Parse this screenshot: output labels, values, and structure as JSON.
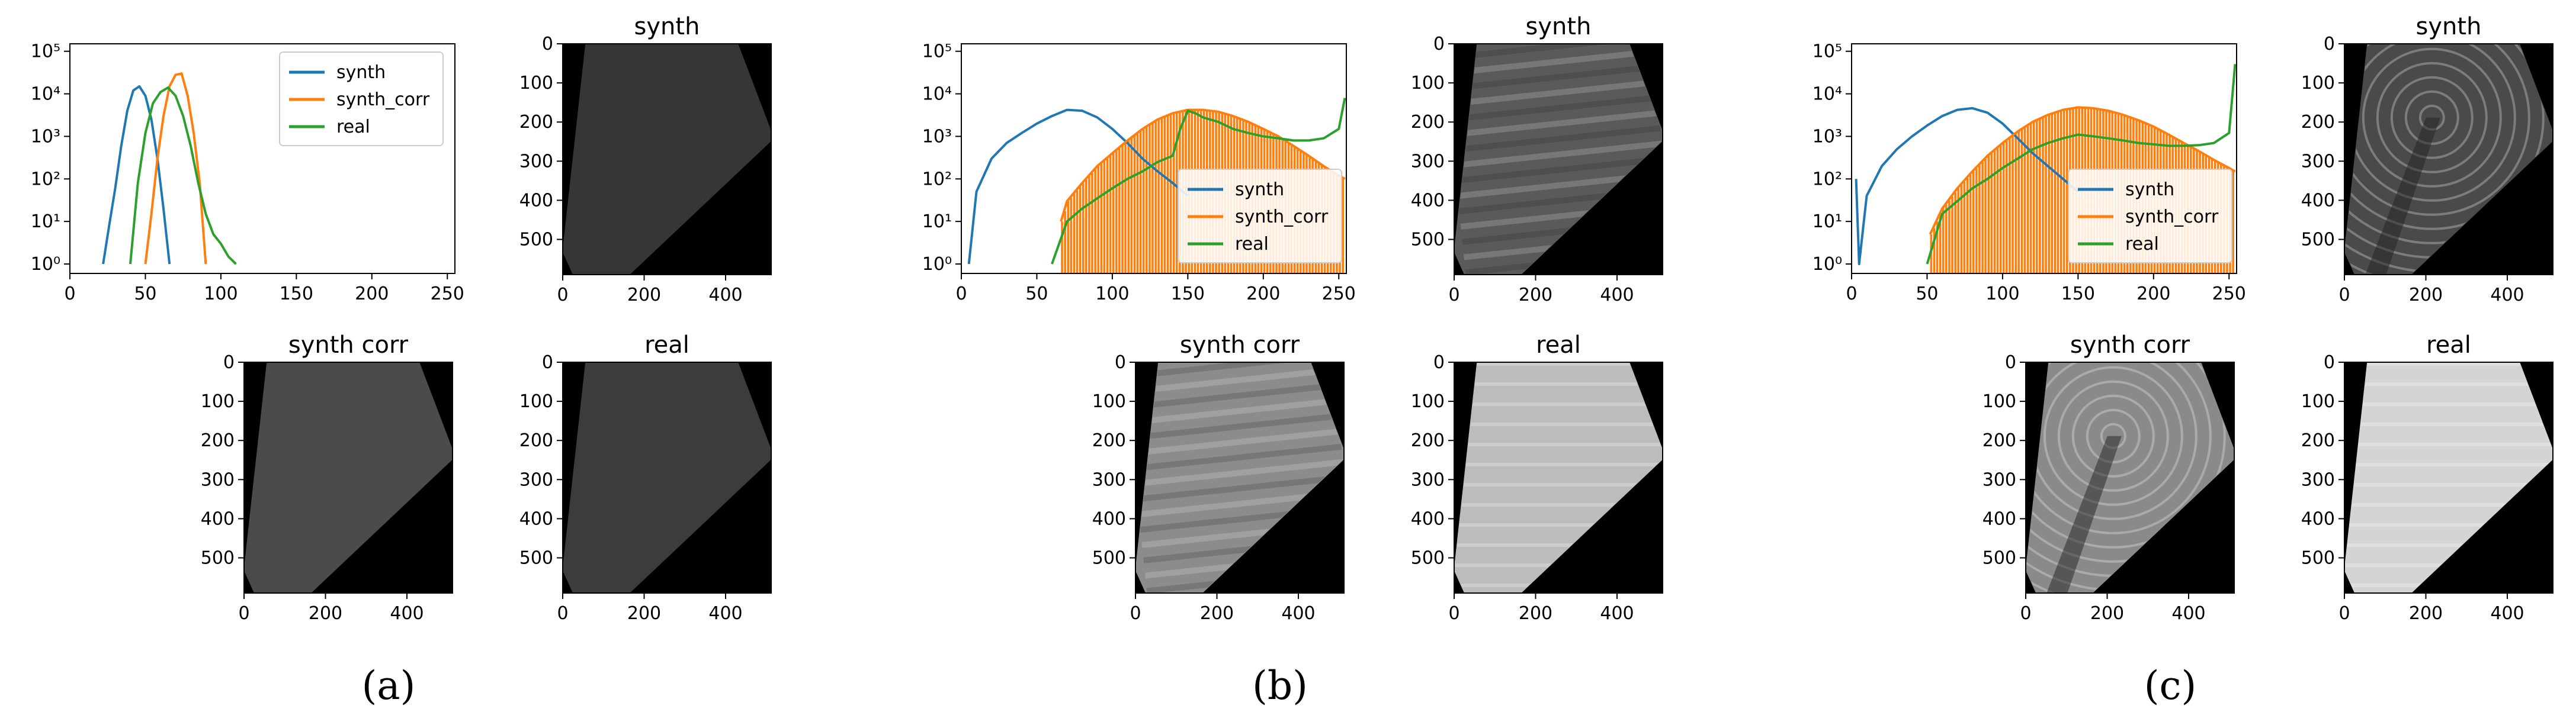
{
  "panels": [
    {
      "label": "(a)",
      "hist": {
        "legend": [
          "synth",
          "synth_corr",
          "real"
        ],
        "xticks": [
          "0",
          "50",
          "100",
          "150",
          "200",
          "250"
        ],
        "yticks": [
          "10⁰",
          "10¹",
          "10²",
          "10³",
          "10⁴",
          "10⁵"
        ]
      },
      "images": [
        {
          "title": "synth",
          "kind": "flat",
          "shade": "#363636"
        },
        {
          "title": "synth corr",
          "kind": "flat",
          "shade": "#4b4b4b"
        },
        {
          "title": "real",
          "kind": "flat",
          "shade": "#3c3c3c"
        }
      ]
    },
    {
      "label": "(b)",
      "hist": {
        "legend": [
          "synth",
          "synth_corr",
          "real"
        ],
        "xticks": [
          "0",
          "50",
          "100",
          "150",
          "200",
          "250"
        ],
        "yticks": [
          "10⁰",
          "10¹",
          "10²",
          "10³",
          "10⁴",
          "10⁵"
        ]
      },
      "images": [
        {
          "title": "synth",
          "kind": "stripes",
          "shade": "#5a5a5a"
        },
        {
          "title": "synth corr",
          "kind": "stripes",
          "shade": "#8c8c8c"
        },
        {
          "title": "real",
          "kind": "bright",
          "shade": "#bcbcbc"
        }
      ]
    },
    {
      "label": "(c)",
      "hist": {
        "legend": [
          "synth",
          "synth_corr",
          "real"
        ],
        "xticks": [
          "0",
          "50",
          "100",
          "150",
          "200",
          "250"
        ],
        "yticks": [
          "10⁰",
          "10¹",
          "10²",
          "10³",
          "10⁴",
          "10⁵"
        ]
      },
      "images": [
        {
          "title": "synth",
          "kind": "rings",
          "shade": "#4a4a4a"
        },
        {
          "title": "synth corr",
          "kind": "rings",
          "shade": "#8a8a8a"
        },
        {
          "title": "real",
          "kind": "bright",
          "shade": "#d4d4d4"
        }
      ]
    }
  ],
  "image_axes": {
    "xticks": [
      "0",
      "200",
      "400"
    ],
    "yticks": [
      "0",
      "100",
      "200",
      "300",
      "400",
      "500"
    ]
  },
  "colors": {
    "synth": "#1f77b4",
    "synth_corr": "#ff7f0e",
    "real": "#2ca02c"
  },
  "chart_data": [
    {
      "type": "line",
      "panel": "a",
      "yscale": "log",
      "xlim": [
        0,
        255
      ],
      "ylim": [
        0.6,
        150000
      ],
      "series": [
        {
          "name": "synth",
          "x": [
            22,
            26,
            30,
            34,
            38,
            42,
            46,
            50,
            54,
            58,
            62,
            66
          ],
          "y": [
            1,
            8,
            60,
            600,
            4000,
            12000,
            15000,
            9000,
            2500,
            300,
            20,
            1
          ]
        },
        {
          "name": "synth_corr",
          "x": [
            50,
            54,
            58,
            62,
            66,
            70,
            74,
            78,
            82,
            86,
            90
          ],
          "y": [
            1,
            15,
            300,
            3000,
            15000,
            28000,
            30000,
            9000,
            1200,
            80,
            1
          ]
        },
        {
          "name": "real",
          "x": [
            40,
            45,
            50,
            55,
            60,
            65,
            70,
            75,
            80,
            85,
            90,
            95,
            100,
            105,
            110
          ],
          "y": [
            1,
            80,
            1200,
            6000,
            11000,
            14000,
            9000,
            3000,
            600,
            80,
            15,
            5,
            3,
            1.5,
            1
          ]
        }
      ]
    },
    {
      "type": "line",
      "panel": "b",
      "yscale": "log",
      "xlim": [
        0,
        255
      ],
      "ylim": [
        0.6,
        150000
      ],
      "series": [
        {
          "name": "synth",
          "x": [
            5,
            10,
            20,
            30,
            40,
            50,
            60,
            70,
            80,
            90,
            100,
            110,
            120,
            130,
            140,
            150
          ],
          "y": [
            1,
            50,
            300,
            700,
            1200,
            2000,
            3000,
            4200,
            4000,
            2800,
            1500,
            700,
            300,
            150,
            80,
            40
          ]
        },
        {
          "name": "synth_corr",
          "x": [
            66,
            70,
            80,
            90,
            100,
            110,
            120,
            130,
            140,
            150,
            160,
            170,
            180,
            190,
            200,
            210,
            220,
            230,
            240,
            250,
            254
          ],
          "y": [
            10,
            30,
            80,
            200,
            400,
            800,
            1500,
            2500,
            3500,
            4200,
            4200,
            3800,
            3000,
            2200,
            1500,
            1000,
            600,
            350,
            200,
            120,
            100
          ]
        },
        {
          "name": "real",
          "x": [
            60,
            70,
            80,
            90,
            100,
            110,
            120,
            130,
            140,
            145,
            150,
            155,
            160,
            170,
            180,
            190,
            200,
            210,
            220,
            230,
            240,
            250,
            254
          ],
          "y": [
            1,
            10,
            20,
            35,
            60,
            100,
            150,
            250,
            350,
            1500,
            4000,
            3500,
            2800,
            2200,
            1500,
            1200,
            1000,
            900,
            800,
            800,
            900,
            1500,
            8000
          ]
        }
      ]
    },
    {
      "type": "line",
      "panel": "c",
      "yscale": "log",
      "xlim": [
        0,
        255
      ],
      "ylim": [
        0.6,
        150000
      ],
      "series": [
        {
          "name": "synth",
          "x": [
            3,
            5,
            10,
            20,
            30,
            40,
            50,
            60,
            70,
            80,
            90,
            100,
            110,
            120,
            130,
            140,
            150
          ],
          "y": [
            100,
            1,
            40,
            200,
            500,
            1000,
            1800,
            3000,
            4200,
            4600,
            3600,
            2000,
            900,
            400,
            200,
            100,
            50
          ]
        },
        {
          "name": "synth_corr",
          "x": [
            52,
            60,
            70,
            80,
            90,
            100,
            110,
            120,
            130,
            140,
            150,
            160,
            170,
            180,
            190,
            200,
            210,
            220,
            230,
            240,
            250,
            254
          ],
          "y": [
            5,
            20,
            60,
            150,
            350,
            700,
            1300,
            2200,
            3200,
            4200,
            4800,
            4600,
            4000,
            3200,
            2400,
            1700,
            1100,
            700,
            450,
            280,
            180,
            150
          ]
        },
        {
          "name": "real",
          "x": [
            50,
            60,
            70,
            80,
            90,
            100,
            110,
            120,
            130,
            140,
            150,
            160,
            170,
            180,
            190,
            200,
            210,
            220,
            230,
            240,
            250,
            254
          ],
          "y": [
            1,
            15,
            30,
            60,
            100,
            180,
            300,
            500,
            700,
            900,
            1100,
            1000,
            900,
            800,
            700,
            650,
            600,
            600,
            620,
            700,
            1200,
            50000
          ]
        }
      ]
    }
  ]
}
